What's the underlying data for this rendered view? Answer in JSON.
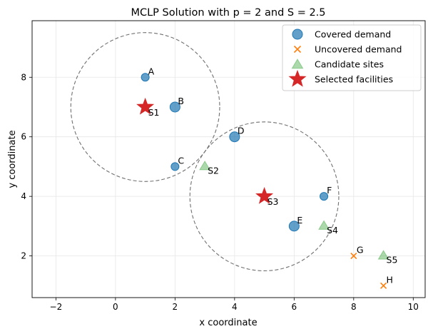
{
  "chart_data": {
    "type": "scatter",
    "title": "MCLP Solution with p = 2 and S = 2.5",
    "xlabel": "x coordinate",
    "ylabel": "y coordinate",
    "xlim": [
      -2.8,
      10.4
    ],
    "ylim": [
      0.6,
      9.9
    ],
    "xticks": [
      -2,
      0,
      2,
      4,
      6,
      8,
      10
    ],
    "yticks": [
      2,
      4,
      6,
      8
    ],
    "grid": true,
    "legend_position": "top-right",
    "coverage_radius": 2.5,
    "legend": [
      {
        "label": "Covered demand",
        "marker": "circle",
        "color": "#1f77b4"
      },
      {
        "label": "Uncovered demand",
        "marker": "x",
        "color": "#ff7f0e"
      },
      {
        "label": "Candidate sites",
        "marker": "triangle",
        "color": "#2ca02c"
      },
      {
        "label": "Selected facilities",
        "marker": "star",
        "color": "#d62728"
      }
    ],
    "covered_demand": [
      {
        "label": "A",
        "x": 1,
        "y": 8,
        "size": "small"
      },
      {
        "label": "B",
        "x": 2,
        "y": 7,
        "size": "large"
      },
      {
        "label": "C",
        "x": 2,
        "y": 5,
        "size": "small"
      },
      {
        "label": "D",
        "x": 4,
        "y": 6,
        "size": "large"
      },
      {
        "label": "E",
        "x": 6,
        "y": 3,
        "size": "large"
      },
      {
        "label": "F",
        "x": 7,
        "y": 4,
        "size": "small"
      }
    ],
    "uncovered_demand": [
      {
        "label": "G",
        "x": 8,
        "y": 2
      },
      {
        "label": "H",
        "x": 9,
        "y": 1
      }
    ],
    "candidate_sites": [
      {
        "label": "S2",
        "x": 3,
        "y": 5
      },
      {
        "label": "S4",
        "x": 7,
        "y": 3
      },
      {
        "label": "S5",
        "x": 9,
        "y": 2
      }
    ],
    "selected_facilities": [
      {
        "label": "S1",
        "x": 1,
        "y": 7
      },
      {
        "label": "S3",
        "x": 5,
        "y": 4
      }
    ]
  }
}
